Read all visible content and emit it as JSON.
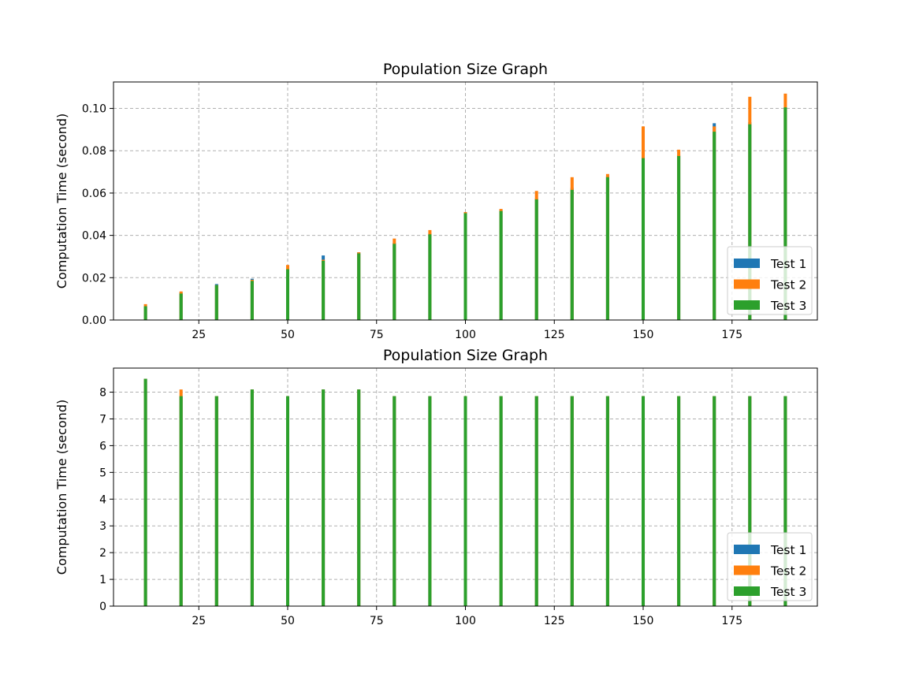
{
  "chart_data": [
    {
      "type": "bar",
      "title": "Population Size Graph",
      "xlabel": "",
      "ylabel": "Computation Time (second)",
      "xlim": [
        1,
        199
      ],
      "ylim": [
        0,
        0.1125
      ],
      "xticks": [
        25,
        50,
        75,
        100,
        125,
        150,
        175
      ],
      "yticks": [
        0.0,
        0.02,
        0.04,
        0.06,
        0.08,
        0.1
      ],
      "ytick_labels": [
        "0.00",
        "0.02",
        "0.04",
        "0.06",
        "0.08",
        "0.10"
      ],
      "grid": true,
      "legend_position": "lower right",
      "x": [
        10,
        20,
        30,
        40,
        50,
        60,
        70,
        80,
        90,
        100,
        110,
        120,
        130,
        140,
        150,
        160,
        170,
        180,
        190
      ],
      "series": [
        {
          "name": "Test 1",
          "color": "#1f77b4",
          "values": [
            0.0065,
            0.013,
            0.017,
            0.0195,
            0.025,
            0.0305,
            0.032,
            0.0365,
            0.041,
            0.051,
            0.052,
            0.0575,
            0.0625,
            0.068,
            0.0775,
            0.078,
            0.093,
            0.0935,
            0.1005
          ]
        },
        {
          "name": "Test 2",
          "color": "#ff7f0e",
          "values": [
            0.0075,
            0.0135,
            0.0165,
            0.019,
            0.026,
            0.0285,
            0.032,
            0.0385,
            0.0425,
            0.051,
            0.0525,
            0.061,
            0.0675,
            0.069,
            0.0915,
            0.0805,
            0.0915,
            0.1055,
            0.107
          ]
        },
        {
          "name": "Test 3",
          "color": "#2ca02c",
          "values": [
            0.0065,
            0.0125,
            0.0165,
            0.0185,
            0.024,
            0.028,
            0.0315,
            0.036,
            0.0405,
            0.0505,
            0.0515,
            0.057,
            0.0615,
            0.0675,
            0.0765,
            0.0775,
            0.089,
            0.0925,
            0.1005
          ]
        }
      ]
    },
    {
      "type": "bar",
      "title": "Population Size Graph",
      "xlabel": "",
      "ylabel": "Computation Time (second)",
      "xlim": [
        1,
        199
      ],
      "ylim": [
        0,
        8.9
      ],
      "xticks": [
        25,
        50,
        75,
        100,
        125,
        150,
        175
      ],
      "yticks": [
        0,
        1,
        2,
        3,
        4,
        5,
        6,
        7,
        8
      ],
      "ytick_labels": [
        "0",
        "1",
        "2",
        "3",
        "4",
        "5",
        "6",
        "7",
        "8"
      ],
      "grid": true,
      "legend_position": "lower right",
      "x": [
        10,
        20,
        30,
        40,
        50,
        60,
        70,
        80,
        90,
        100,
        110,
        120,
        130,
        140,
        150,
        160,
        170,
        180,
        190
      ],
      "series": [
        {
          "name": "Test 1",
          "color": "#1f77b4",
          "values": [
            8.5,
            7.85,
            7.85,
            8.1,
            7.85,
            8.1,
            8.1,
            7.85,
            7.85,
            7.85,
            7.85,
            7.85,
            7.85,
            7.85,
            7.85,
            7.85,
            7.85,
            7.85,
            7.85
          ]
        },
        {
          "name": "Test 2",
          "color": "#ff7f0e",
          "values": [
            8.5,
            8.1,
            7.85,
            8.1,
            7.85,
            8.1,
            8.1,
            7.85,
            7.85,
            7.85,
            7.85,
            7.85,
            7.85,
            7.85,
            7.85,
            7.85,
            7.85,
            7.85,
            7.85
          ]
        },
        {
          "name": "Test 3",
          "color": "#2ca02c",
          "values": [
            8.5,
            7.85,
            7.85,
            8.1,
            7.85,
            8.1,
            8.1,
            7.85,
            7.85,
            7.85,
            7.85,
            7.85,
            7.85,
            7.85,
            7.85,
            7.85,
            7.85,
            7.85,
            7.85
          ]
        }
      ]
    }
  ]
}
